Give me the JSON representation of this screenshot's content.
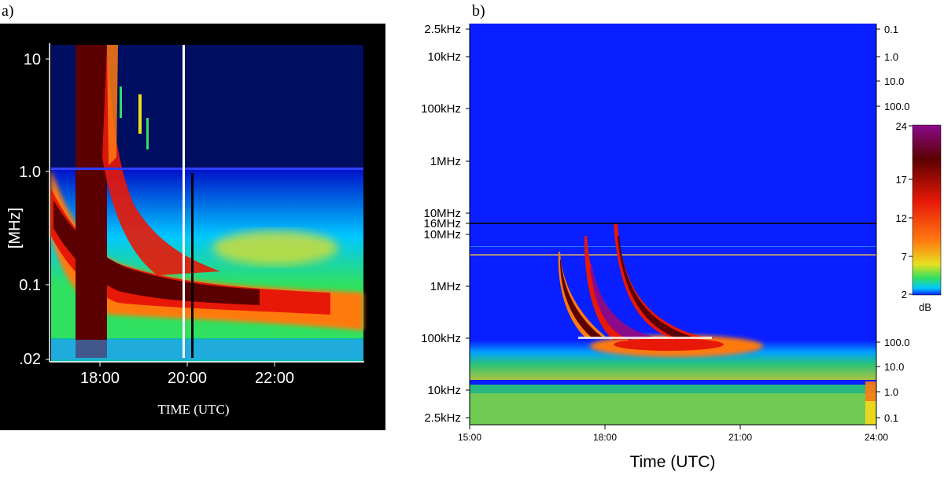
{
  "colors": {
    "page_bg": "#ffffff",
    "panel_a_bg": "#000000",
    "background_blue": "#0a1fff",
    "deep_blue": "#0010c8",
    "cyan": "#00c8ff",
    "green": "#30e060",
    "yellow": "#e8e020",
    "orange": "#ff7a10",
    "red": "#e81808",
    "darkred": "#5a0000",
    "purple": "#8a0a8a",
    "white": "#ffffff"
  },
  "chart_data": [
    {
      "type": "heatmap",
      "panel_label": "a)",
      "title": "",
      "xlabel": "TIME  (UTC)",
      "ylabel": "[MHz]",
      "x_tick_labels": [
        "18:00",
        "20:00",
        "22:00"
      ],
      "x_ticks_hours": [
        18,
        20,
        22
      ],
      "xlim_hours": [
        16.9,
        23.9
      ],
      "y_tick_labels": [
        "10",
        "1.0",
        "0.1",
        ".02"
      ],
      "y_ticks_mhz": [
        10,
        1.0,
        0.1,
        0.02
      ],
      "ylim_mhz": [
        0.02,
        14
      ],
      "y_scale": "log",
      "features": {
        "type_iii_burst_onset_utc": "17:30",
        "type_ii_like_drift": "from ~1 MHz at 17:00 to ~0.07 MHz by 22:00",
        "marker_line_utc": "20:00"
      }
    },
    {
      "type": "heatmap",
      "panel_label": "b)",
      "title": "",
      "xlabel": "Time (UTC)",
      "x_tick_labels": [
        "15:00",
        "18:00",
        "21:00",
        "24:00"
      ],
      "x_ticks_hours": [
        15,
        18,
        21,
        24
      ],
      "xlim_hours": [
        15,
        24
      ],
      "y_scale": "log",
      "y_tick_labels_upper": [
        "2.5kHz",
        "10kHz",
        "100kHz",
        "1MHz",
        "10MHz",
        "16MHz"
      ],
      "y_tick_labels_lower": [
        "10MHz",
        "1MHz",
        "100kHz",
        "10kHz",
        "2.5kHz"
      ],
      "right_tick_labels_upper": [
        "0.1",
        "1.0",
        "10.0",
        "100.0"
      ],
      "right_tick_labels_lower": [
        "100.0",
        "10.0",
        "1.0",
        "0.1"
      ],
      "colorbar": {
        "label": "dB",
        "tick_labels": [
          "24",
          "17",
          "12",
          "7",
          "2"
        ],
        "ticks": [
          24,
          17,
          12,
          7,
          2
        ],
        "range": [
          2,
          24
        ]
      },
      "features": {
        "burst_onsets_utc": [
          "17:00",
          "17:50",
          "18:20"
        ],
        "converge_near": "100kHz around 19:00-20:00"
      }
    }
  ]
}
